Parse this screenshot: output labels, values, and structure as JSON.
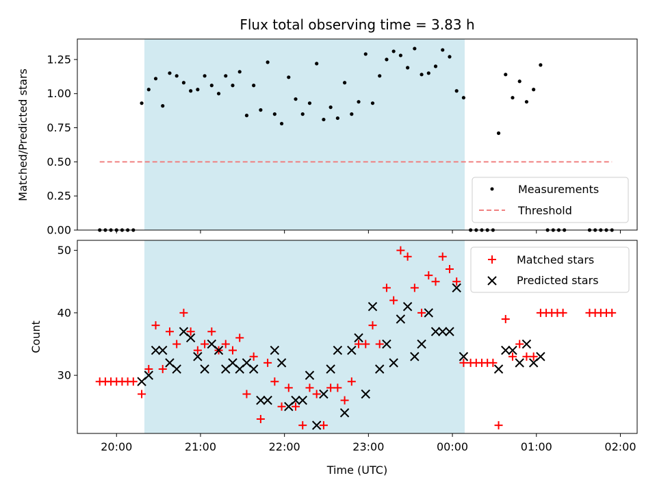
{
  "chart_data": [
    {
      "type": "scatter",
      "title": "Flux total observing time = 3.83 h",
      "ylabel": "Matched/Predicted stars",
      "xlabel": "",
      "xlim": [
        "19:32",
        "02:12"
      ],
      "ylim": [
        0,
        1.4
      ],
      "yticks": [
        "0.00",
        "0.25",
        "0.50",
        "0.75",
        "1.00",
        "1.25"
      ],
      "shaded_interval": [
        "20:18",
        "00:12"
      ],
      "shade_color": "#add8e6",
      "legend": {
        "placement": "bottom-right",
        "entries": [
          "Measurements",
          "Threshold"
        ]
      },
      "threshold": {
        "name": "Threshold",
        "value": 0.5,
        "x_range": [
          "19:48",
          "01:54"
        ],
        "color": "#f08080"
      },
      "series": [
        {
          "name": "Measurements",
          "color": "#000000",
          "points": [
            [
              "19:48",
              0
            ],
            [
              "19:52",
              0
            ],
            [
              "19:56",
              0
            ],
            [
              "20:00",
              0
            ],
            [
              "20:04",
              0
            ],
            [
              "20:08",
              0
            ],
            [
              "20:12",
              0
            ],
            [
              "20:18",
              0.93
            ],
            [
              "20:23",
              1.03
            ],
            [
              "20:28",
              1.11
            ],
            [
              "20:33",
              0.91
            ],
            [
              "20:38",
              1.15
            ],
            [
              "20:43",
              1.13
            ],
            [
              "20:48",
              1.08
            ],
            [
              "20:53",
              1.02
            ],
            [
              "20:58",
              1.03
            ],
            [
              "21:03",
              1.13
            ],
            [
              "21:08",
              1.06
            ],
            [
              "21:13",
              1.0
            ],
            [
              "21:18",
              1.13
            ],
            [
              "21:23",
              1.06
            ],
            [
              "21:28",
              1.16
            ],
            [
              "21:33",
              0.84
            ],
            [
              "21:38",
              1.06
            ],
            [
              "21:43",
              0.88
            ],
            [
              "21:48",
              1.23
            ],
            [
              "21:53",
              0.85
            ],
            [
              "21:58",
              0.78
            ],
            [
              "22:03",
              1.12
            ],
            [
              "22:08",
              0.96
            ],
            [
              "22:13",
              0.85
            ],
            [
              "22:18",
              0.93
            ],
            [
              "22:23",
              1.22
            ],
            [
              "22:28",
              0.81
            ],
            [
              "22:33",
              0.9
            ],
            [
              "22:38",
              0.82
            ],
            [
              "22:43",
              1.08
            ],
            [
              "22:48",
              0.85
            ],
            [
              "22:53",
              0.94
            ],
            [
              "22:58",
              1.29
            ],
            [
              "23:03",
              0.93
            ],
            [
              "23:08",
              1.13
            ],
            [
              "23:13",
              1.25
            ],
            [
              "23:18",
              1.31
            ],
            [
              "23:23",
              1.28
            ],
            [
              "23:28",
              1.19
            ],
            [
              "23:33",
              1.33
            ],
            [
              "23:38",
              1.14
            ],
            [
              "23:43",
              1.15
            ],
            [
              "23:48",
              1.2
            ],
            [
              "23:53",
              1.32
            ],
            [
              "23:58",
              1.27
            ],
            [
              "00:03",
              1.02
            ],
            [
              "00:08",
              0.97
            ],
            [
              "00:13",
              0
            ],
            [
              "00:17",
              0
            ],
            [
              "00:21",
              0
            ],
            [
              "00:25",
              0
            ],
            [
              "00:29",
              0
            ],
            [
              "00:33",
              0.71
            ],
            [
              "00:38",
              1.14
            ],
            [
              "00:43",
              0.97
            ],
            [
              "00:48",
              1.09
            ],
            [
              "00:53",
              0.94
            ],
            [
              "00:58",
              1.03
            ],
            [
              "01:03",
              1.21
            ],
            [
              "01:08",
              0
            ],
            [
              "01:12",
              0
            ],
            [
              "01:16",
              0
            ],
            [
              "01:20",
              0
            ],
            [
              "01:38",
              0
            ],
            [
              "01:42",
              0
            ],
            [
              "01:46",
              0
            ],
            [
              "01:50",
              0
            ],
            [
              "01:54",
              0
            ]
          ]
        }
      ]
    },
    {
      "type": "scatter",
      "title": "",
      "ylabel": "Count",
      "xlabel": "Time (UTC)",
      "xlim": [
        "19:32",
        "02:12"
      ],
      "ylim": [
        20.7,
        51.6
      ],
      "yticks": [
        "30",
        "40",
        "50"
      ],
      "xticks": [
        "20:00",
        "21:00",
        "22:00",
        "23:00",
        "00:00",
        "01:00",
        "02:00"
      ],
      "shaded_interval": [
        "20:18",
        "00:12"
      ],
      "shade_color": "#add8e6",
      "legend": {
        "placement": "top-right",
        "entries": [
          "Matched stars",
          "Predicted stars"
        ]
      },
      "series": [
        {
          "name": "Matched stars",
          "marker": "plus",
          "color": "#ff0000",
          "points": [
            [
              "19:48",
              29
            ],
            [
              "19:52",
              29
            ],
            [
              "19:56",
              29
            ],
            [
              "20:00",
              29
            ],
            [
              "20:04",
              29
            ],
            [
              "20:08",
              29
            ],
            [
              "20:12",
              29
            ],
            [
              "20:18",
              27
            ],
            [
              "20:23",
              31
            ],
            [
              "20:28",
              38
            ],
            [
              "20:33",
              31
            ],
            [
              "20:38",
              37
            ],
            [
              "20:43",
              35
            ],
            [
              "20:48",
              40
            ],
            [
              "20:53",
              37
            ],
            [
              "20:58",
              34
            ],
            [
              "21:03",
              35
            ],
            [
              "21:08",
              37
            ],
            [
              "21:13",
              34
            ],
            [
              "21:18",
              35
            ],
            [
              "21:23",
              34
            ],
            [
              "21:28",
              36
            ],
            [
              "21:33",
              27
            ],
            [
              "21:38",
              33
            ],
            [
              "21:43",
              23
            ],
            [
              "21:48",
              32
            ],
            [
              "21:53",
              29
            ],
            [
              "21:58",
              25
            ],
            [
              "22:03",
              28
            ],
            [
              "22:08",
              25
            ],
            [
              "22:13",
              22
            ],
            [
              "22:18",
              28
            ],
            [
              "22:23",
              27
            ],
            [
              "22:28",
              22
            ],
            [
              "22:33",
              28
            ],
            [
              "22:38",
              28
            ],
            [
              "22:43",
              26
            ],
            [
              "22:48",
              29
            ],
            [
              "22:53",
              35
            ],
            [
              "22:58",
              35
            ],
            [
              "23:03",
              38
            ],
            [
              "23:08",
              35
            ],
            [
              "23:13",
              44
            ],
            [
              "23:18",
              42
            ],
            [
              "23:23",
              50
            ],
            [
              "23:28",
              49
            ],
            [
              "23:33",
              44
            ],
            [
              "23:38",
              40
            ],
            [
              "23:43",
              46
            ],
            [
              "23:48",
              45
            ],
            [
              "23:53",
              49
            ],
            [
              "23:58",
              47
            ],
            [
              "00:03",
              45
            ],
            [
              "00:08",
              32
            ],
            [
              "00:13",
              32
            ],
            [
              "00:17",
              32
            ],
            [
              "00:21",
              32
            ],
            [
              "00:25",
              32
            ],
            [
              "00:29",
              32
            ],
            [
              "00:33",
              22
            ],
            [
              "00:38",
              39
            ],
            [
              "00:43",
              33
            ],
            [
              "00:48",
              35
            ],
            [
              "00:53",
              33
            ],
            [
              "00:58",
              33
            ],
            [
              "01:03",
              40
            ],
            [
              "01:07",
              40
            ],
            [
              "01:11",
              40
            ],
            [
              "01:15",
              40
            ],
            [
              "01:19",
              40
            ],
            [
              "01:38",
              40
            ],
            [
              "01:42",
              40
            ],
            [
              "01:46",
              40
            ],
            [
              "01:50",
              40
            ],
            [
              "01:54",
              40
            ]
          ]
        },
        {
          "name": "Predicted stars",
          "marker": "x",
          "color": "#000000",
          "points": [
            [
              "20:18",
              29
            ],
            [
              "20:23",
              30
            ],
            [
              "20:28",
              34
            ],
            [
              "20:33",
              34
            ],
            [
              "20:38",
              32
            ],
            [
              "20:43",
              31
            ],
            [
              "20:48",
              37
            ],
            [
              "20:53",
              36
            ],
            [
              "20:58",
              33
            ],
            [
              "21:03",
              31
            ],
            [
              "21:08",
              35
            ],
            [
              "21:13",
              34
            ],
            [
              "21:18",
              31
            ],
            [
              "21:23",
              32
            ],
            [
              "21:28",
              31
            ],
            [
              "21:33",
              32
            ],
            [
              "21:38",
              31
            ],
            [
              "21:43",
              26
            ],
            [
              "21:48",
              26
            ],
            [
              "21:53",
              34
            ],
            [
              "21:58",
              32
            ],
            [
              "22:03",
              25
            ],
            [
              "22:08",
              26
            ],
            [
              "22:13",
              26
            ],
            [
              "22:18",
              30
            ],
            [
              "22:23",
              22
            ],
            [
              "22:28",
              27
            ],
            [
              "22:33",
              31
            ],
            [
              "22:38",
              34
            ],
            [
              "22:43",
              24
            ],
            [
              "22:48",
              34
            ],
            [
              "22:53",
              36
            ],
            [
              "22:58",
              27
            ],
            [
              "23:03",
              41
            ],
            [
              "23:08",
              31
            ],
            [
              "23:13",
              35
            ],
            [
              "23:18",
              32
            ],
            [
              "23:23",
              39
            ],
            [
              "23:28",
              41
            ],
            [
              "23:33",
              33
            ],
            [
              "23:38",
              35
            ],
            [
              "23:43",
              40
            ],
            [
              "23:48",
              37
            ],
            [
              "23:53",
              37
            ],
            [
              "23:58",
              37
            ],
            [
              "00:03",
              44
            ],
            [
              "00:08",
              33
            ],
            [
              "00:33",
              31
            ],
            [
              "00:38",
              34
            ],
            [
              "00:43",
              34
            ],
            [
              "00:48",
              32
            ],
            [
              "00:53",
              35
            ],
            [
              "00:58",
              32
            ],
            [
              "01:03",
              33
            ]
          ]
        }
      ]
    }
  ]
}
